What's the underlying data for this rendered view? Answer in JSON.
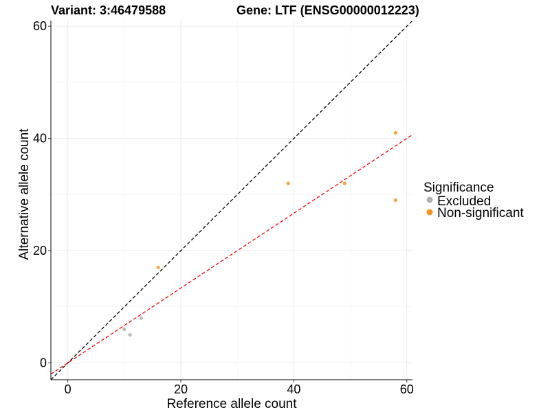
{
  "chart_data": {
    "type": "scatter",
    "title_variant": "Variant: 3:46479588",
    "title_gene": "Gene: LTF (ENSG00000012223)",
    "xlabel": "Reference allele count",
    "ylabel": "Alternative allele count",
    "xlim": [
      -3,
      61
    ],
    "ylim": [
      -3,
      61
    ],
    "x_ticks": [
      0,
      20,
      40,
      60
    ],
    "y_ticks": [
      0,
      20,
      40,
      60
    ],
    "x_tick_labels": [
      "0",
      "20",
      "40",
      "60"
    ],
    "y_tick_labels": [
      "0",
      "20",
      "40",
      "60"
    ],
    "legend": {
      "title": "Significance",
      "position": "right",
      "entries": [
        {
          "label": "Excluded",
          "color": "#b0b0b0"
        },
        {
          "label": "Non-significant",
          "color": "#f7941d"
        }
      ]
    },
    "series": [
      {
        "name": "Excluded",
        "color": "#b0b0b0",
        "points": [
          [
            10,
            6
          ],
          [
            11,
            5
          ],
          [
            13,
            8
          ]
        ]
      },
      {
        "name": "Non-significant",
        "color": "#f7941d",
        "points": [
          [
            16,
            17
          ],
          [
            39,
            32
          ],
          [
            49,
            32
          ],
          [
            58,
            41
          ],
          [
            58,
            29
          ]
        ]
      }
    ],
    "reference_lines": [
      {
        "name": "identity",
        "color": "#000000",
        "dash": "dashed",
        "slope": 1.0,
        "intercept": 0
      },
      {
        "name": "fit",
        "color": "#ff0000",
        "dash": "dashed",
        "slope": 0.6667,
        "intercept": 0
      }
    ]
  }
}
